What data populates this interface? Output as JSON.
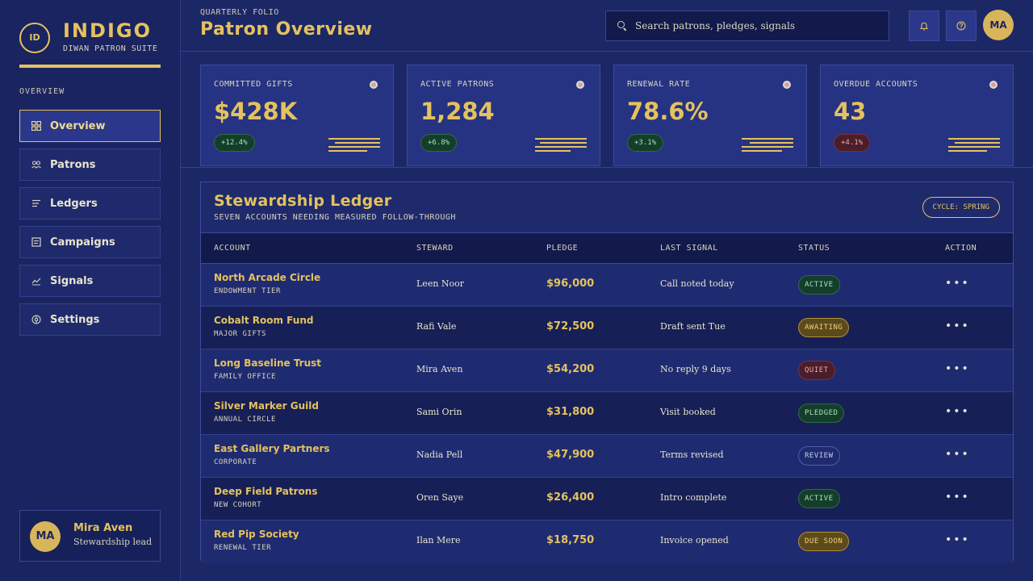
{
  "brand": {
    "mark": "ID",
    "name": "INDIGO",
    "subtitle": "DIWAN PATRON SUITE"
  },
  "sidebar": {
    "section_label": "OVERVIEW",
    "items": [
      {
        "label": "Overview",
        "icon": "grid-icon",
        "active": true
      },
      {
        "label": "Patrons",
        "icon": "people-icon",
        "active": false
      },
      {
        "label": "Ledgers",
        "icon": "list-icon",
        "active": false
      },
      {
        "label": "Campaigns",
        "icon": "document-icon",
        "active": false
      },
      {
        "label": "Signals",
        "icon": "chart-line-icon",
        "active": false
      },
      {
        "label": "Settings",
        "icon": "gear-icon",
        "active": false
      }
    ],
    "user": {
      "initials": "MA",
      "name": "Mira Aven",
      "role": "Stewardship lead"
    }
  },
  "header": {
    "eyebrow": "QUARTERLY FOLIO",
    "title": "Patron Overview",
    "search_placeholder": "Search patrons, pledges, signals",
    "avatar_initials": "MA"
  },
  "kpis": [
    {
      "label": "COMMITTED GIFTS",
      "value": "$428K",
      "delta": "+12.4%",
      "trend": "up"
    },
    {
      "label": "ACTIVE PATRONS",
      "value": "1,284",
      "delta": "+6.8%",
      "trend": "up"
    },
    {
      "label": "RENEWAL RATE",
      "value": "78.6%",
      "delta": "+3.1%",
      "trend": "up"
    },
    {
      "label": "OVERDUE ACCOUNTS",
      "value": "43",
      "delta": "+4.1%",
      "trend": "down"
    }
  ],
  "ledger": {
    "title": "Stewardship Ledger",
    "subtitle": "SEVEN ACCOUNTS NEEDING MEASURED FOLLOW-THROUGH",
    "cycle": "CYCLE: SPRING",
    "columns": [
      "ACCOUNT",
      "STEWARD",
      "PLEDGE",
      "LAST SIGNAL",
      "STATUS",
      "ACTION"
    ],
    "rows": [
      {
        "account": "North Arcade Circle",
        "tier": "ENDOWMENT TIER",
        "steward": "Leen Noor",
        "pledge": "$96,000",
        "signal": "Call noted today",
        "status": "ACTIVE",
        "tone": "green",
        "action": "•••"
      },
      {
        "account": "Cobalt Room Fund",
        "tier": "MAJOR GIFTS",
        "steward": "Rafi Vale",
        "pledge": "$72,500",
        "signal": "Draft sent Tue",
        "status": "AWAITING",
        "tone": "amber",
        "action": "•••"
      },
      {
        "account": "Long Baseline Trust",
        "tier": "FAMILY OFFICE",
        "steward": "Mira Aven",
        "pledge": "$54,200",
        "signal": "No reply 9 days",
        "status": "QUIET",
        "tone": "red",
        "action": "•••"
      },
      {
        "account": "Silver Marker Guild",
        "tier": "ANNUAL CIRCLE",
        "steward": "Sami Orin",
        "pledge": "$31,800",
        "signal": "Visit booked",
        "status": "PLEDGED",
        "tone": "green",
        "action": "•••"
      },
      {
        "account": "East Gallery Partners",
        "tier": "CORPORATE",
        "steward": "Nadia Pell",
        "pledge": "$47,900",
        "signal": "Terms revised",
        "status": "REVIEW",
        "tone": "outline",
        "action": "•••"
      },
      {
        "account": "Deep Field Patrons",
        "tier": "NEW COHORT",
        "steward": "Oren Saye",
        "pledge": "$26,400",
        "signal": "Intro complete",
        "status": "ACTIVE",
        "tone": "green",
        "action": "•••"
      },
      {
        "account": "Red Pip Society",
        "tier": "RENEWAL TIER",
        "steward": "Ilan Mere",
        "pledge": "$18,750",
        "signal": "Invoice opened",
        "status": "DUE SOON",
        "tone": "amber",
        "action": "•••"
      }
    ]
  },
  "colors": {
    "accent": "#e4c25e",
    "background": "#1c2766",
    "panel": "#1e2a6c",
    "positive": "#a7e2b5",
    "negative": "#f0a7a1"
  }
}
